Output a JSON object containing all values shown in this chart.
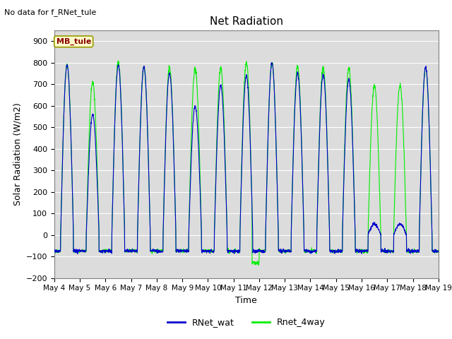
{
  "title": "Net Radiation",
  "xlabel": "Time",
  "ylabel": "Solar Radiation (W/m2)",
  "top_left_text": "No data for f_RNet_tule",
  "station_label": "MB_tule",
  "ylim": [
    -200,
    950
  ],
  "yticks": [
    -200,
    -100,
    0,
    100,
    200,
    300,
    400,
    500,
    600,
    700,
    800,
    900
  ],
  "line1_color": "#0000cc",
  "line2_color": "#00ee00",
  "line1_label": "RNet_wat",
  "line2_label": "Rnet_4way",
  "bg_color": "#dcdcdc",
  "n_days": 15,
  "start_day": 4,
  "title_fontsize": 11,
  "label_fontsize": 9,
  "tick_fontsize": 8,
  "legend_fontsize": 9
}
